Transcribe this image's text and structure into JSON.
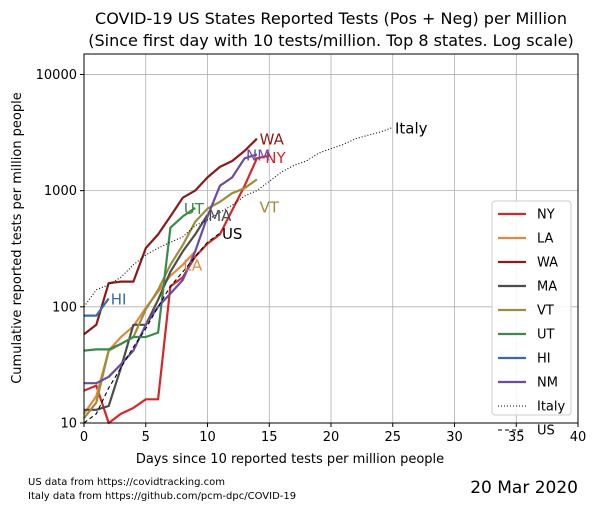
{
  "chart_data": {
    "type": "line",
    "title": "COVID-19 US States Reported Tests (Pos + Neg) per Million",
    "subtitle": "(Since first day with 10 tests/million. Top 8 states. Log scale)",
    "xlabel": "Days since 10 reported tests per million people",
    "ylabel": "Cumulative reported tests per million people",
    "xlim": [
      0,
      40
    ],
    "ylim": [
      10,
      15000
    ],
    "yscale": "log",
    "xticks": [
      0,
      5,
      10,
      15,
      20,
      25,
      30,
      35,
      40
    ],
    "yticks": [
      10,
      100,
      1000,
      10000
    ],
    "ytick_labels": [
      "10",
      "100",
      "1000",
      "10000"
    ],
    "grid": true,
    "legend_position": "center-right",
    "series": [
      {
        "name": "NY",
        "color": "#d62728",
        "dash": "solid",
        "line_label": "NY",
        "line_label_at": [
          15.5,
          1950
        ],
        "x": [
          0,
          1,
          2,
          3,
          4,
          5,
          6,
          7,
          8,
          9,
          10,
          11,
          12,
          13,
          14,
          15
        ],
        "y": [
          19,
          21,
          10,
          12,
          13.5,
          16,
          16,
          150,
          180,
          270,
          350,
          420,
          680,
          1100,
          1900,
          2000
        ]
      },
      {
        "name": "LA",
        "color": "#e08a3c",
        "dash": "solid",
        "line_label": "LA",
        "line_label_at": [
          8.8,
          232
        ],
        "x": [
          0,
          1,
          2,
          3,
          4,
          5,
          6,
          7,
          8,
          9
        ],
        "y": [
          12,
          17,
          42,
          55,
          68,
          98,
          135,
          185,
          230,
          300
        ]
      },
      {
        "name": "WA",
        "color": "#8b1a1a",
        "dash": "solid",
        "line_label": "WA",
        "line_label_at": [
          15.2,
          2800
        ],
        "x": [
          0,
          1,
          2,
          3,
          4,
          5,
          6,
          7,
          8,
          9,
          10,
          11,
          12,
          13,
          14
        ],
        "y": [
          58,
          70,
          160,
          165,
          165,
          320,
          420,
          600,
          870,
          1000,
          1300,
          1600,
          1800,
          2200,
          2800
        ]
      },
      {
        "name": "MA",
        "color": "#4d4d4d",
        "dash": "solid",
        "line_label": "MA",
        "line_label_at": [
          11,
          620
        ],
        "x": [
          0,
          1,
          2,
          3,
          4,
          5,
          6,
          7,
          8,
          9,
          10
        ],
        "y": [
          13,
          13,
          14,
          30,
          70,
          70,
          115,
          200,
          300,
          420,
          620
        ]
      },
      {
        "name": "VT",
        "color": "#a08c3c",
        "dash": "solid",
        "line_label": "VT",
        "line_label_at": [
          15,
          730
        ],
        "x": [
          0,
          1,
          2,
          3,
          4,
          5,
          6,
          7,
          8,
          9,
          10,
          11,
          12,
          13,
          14
        ],
        "y": [
          11,
          15,
          42,
          48,
          55,
          95,
          140,
          230,
          340,
          540,
          700,
          800,
          950,
          1050,
          1250
        ]
      },
      {
        "name": "UT",
        "color": "#3a8a4a",
        "dash": "solid",
        "line_label": "UT",
        "line_label_at": [
          8.9,
          710
        ],
        "x": [
          0,
          1,
          2,
          3,
          4,
          5,
          6,
          7,
          8,
          9
        ],
        "y": [
          42,
          43,
          43,
          48,
          55,
          55,
          60,
          480,
          600,
          710
        ]
      },
      {
        "name": "HI",
        "color": "#3a6aaa",
        "dash": "solid",
        "line_label": "HI",
        "line_label_at": [
          2.8,
          118
        ],
        "x": [
          0,
          1,
          2
        ],
        "y": [
          84,
          84,
          118
        ]
      },
      {
        "name": "NM",
        "color": "#6a4ca0",
        "dash": "solid",
        "line_label": "NM",
        "line_label_at": [
          14.1,
          2050
        ],
        "x": [
          0,
          1,
          2,
          3,
          4,
          5,
          6,
          7,
          8,
          9,
          10,
          11,
          12,
          13,
          14
        ],
        "y": [
          22,
          22,
          25,
          32,
          42,
          70,
          100,
          130,
          170,
          300,
          600,
          1100,
          1300,
          1900,
          2050
        ]
      },
      {
        "name": "Italy",
        "color": "#000000",
        "dash": "dotted",
        "line_label": "Italy",
        "line_label_at": [
          26.5,
          3500
        ],
        "x": [
          0,
          1,
          2,
          3,
          4,
          5,
          6,
          7,
          8,
          9,
          10,
          11,
          12,
          13,
          14,
          15,
          16,
          17,
          18,
          19,
          20,
          21,
          22,
          23,
          24,
          25
        ],
        "y": [
          100,
          140,
          155,
          180,
          230,
          280,
          320,
          360,
          400,
          500,
          560,
          650,
          750,
          900,
          1000,
          1200,
          1450,
          1650,
          1800,
          2100,
          2300,
          2500,
          2800,
          3000,
          3200,
          3500
        ]
      },
      {
        "name": "US",
        "color": "#000000",
        "dash": "dashed",
        "line_label": "US",
        "line_label_at": [
          12,
          430
        ],
        "x": [
          0,
          1,
          2,
          3,
          4,
          5,
          6,
          7,
          8,
          9,
          10,
          11
        ],
        "y": [
          10,
          12,
          20,
          30,
          45,
          65,
          100,
          150,
          200,
          270,
          360,
          430
        ]
      }
    ]
  },
  "footer": {
    "source_us": "US data from https://covidtracking.com",
    "source_italy": "Italy data from https://github.com/pcm-dpc/COVID-19",
    "date": "20 Mar 2020"
  }
}
